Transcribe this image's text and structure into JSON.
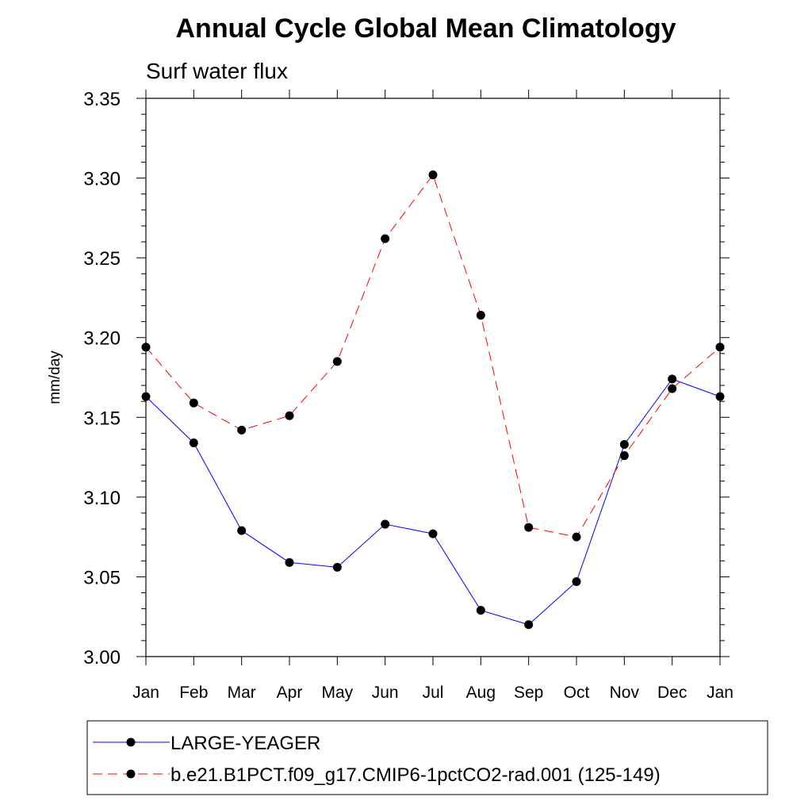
{
  "chart_data": {
    "type": "line",
    "title": "Annual Cycle Global Mean Climatology",
    "subtitle": "Surf water flux",
    "xlabel": "",
    "ylabel": "mm/day",
    "ylim": [
      3.0,
      3.35
    ],
    "yticks": [
      "3.00",
      "3.05",
      "3.10",
      "3.15",
      "3.20",
      "3.25",
      "3.30",
      "3.35"
    ],
    "categories": [
      "Jan",
      "Feb",
      "Mar",
      "Apr",
      "May",
      "Jun",
      "Jul",
      "Aug",
      "Sep",
      "Oct",
      "Nov",
      "Dec",
      "Jan"
    ],
    "series": [
      {
        "name": "LARGE-YEAGER",
        "color": "#0000ff",
        "dash": "solid",
        "values": [
          3.163,
          3.134,
          3.079,
          3.059,
          3.056,
          3.083,
          3.077,
          3.029,
          3.02,
          3.047,
          3.133,
          3.174,
          3.163
        ]
      },
      {
        "name": "b.e21.B1PCT.f09_g17.CMIP6-1pctCO2-rad.001 (125-149)",
        "color": "#ff0000",
        "dash": "dashed",
        "values": [
          3.194,
          3.159,
          3.142,
          3.151,
          3.185,
          3.262,
          3.302,
          3.214,
          3.081,
          3.075,
          3.126,
          3.168,
          3.194
        ]
      }
    ],
    "grid": false,
    "legend_position": "bottom"
  }
}
